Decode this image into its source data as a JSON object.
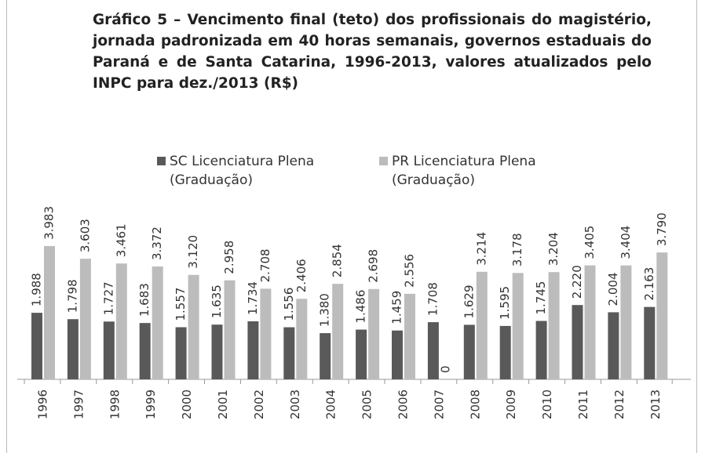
{
  "chart_data": {
    "type": "bar",
    "title": "Gráfico 5 – Vencimento final (teto) dos profissionais do magistério, jornada padronizada em 40 horas semanais, governos estaduais do Paraná e de Santa Catarina, 1996-2013, valores atualizados pelo INPC para dez./2013 (R$)",
    "categories": [
      "1996",
      "1997",
      "1998",
      "1999",
      "2000",
      "2001",
      "2002",
      "2003",
      "2004",
      "2005",
      "2006",
      "2007",
      "2008",
      "2009",
      "2010",
      "2011",
      "2012",
      "2013"
    ],
    "series": [
      {
        "name": "SC Licenciatura Plena (Graduação)",
        "color": "#595959",
        "values": [
          1988,
          1798,
          1727,
          1683,
          1557,
          1635,
          1734,
          1556,
          1380,
          1486,
          1459,
          1708,
          1629,
          1595,
          1745,
          2220,
          2004,
          2163
        ],
        "value_labels": [
          "1.988",
          "1.798",
          "1.727",
          "1.683",
          "1.557",
          "1.635",
          "1.734",
          "1.556",
          "1.380",
          "1.486",
          "1.459",
          "1.708",
          "1.629",
          "1.595",
          "1.745",
          "2.220",
          "2.004",
          "2.163"
        ]
      },
      {
        "name": "PR Licenciatura Plena (Graduação)",
        "color": "#bcbcbc",
        "values": [
          3983,
          3603,
          3461,
          3372,
          3120,
          2958,
          2708,
          2406,
          2854,
          2698,
          2556,
          0,
          3214,
          3178,
          3204,
          3405,
          3404,
          3790
        ],
        "value_labels": [
          "3.983",
          "3.603",
          "3.461",
          "3.372",
          "3.120",
          "2.958",
          "2.708",
          "2.406",
          "2.854",
          "2.698",
          "2.556",
          "0",
          "3.214",
          "3.178",
          "3.204",
          "3.405",
          "3.404",
          "3.790"
        ]
      }
    ]
  }
}
